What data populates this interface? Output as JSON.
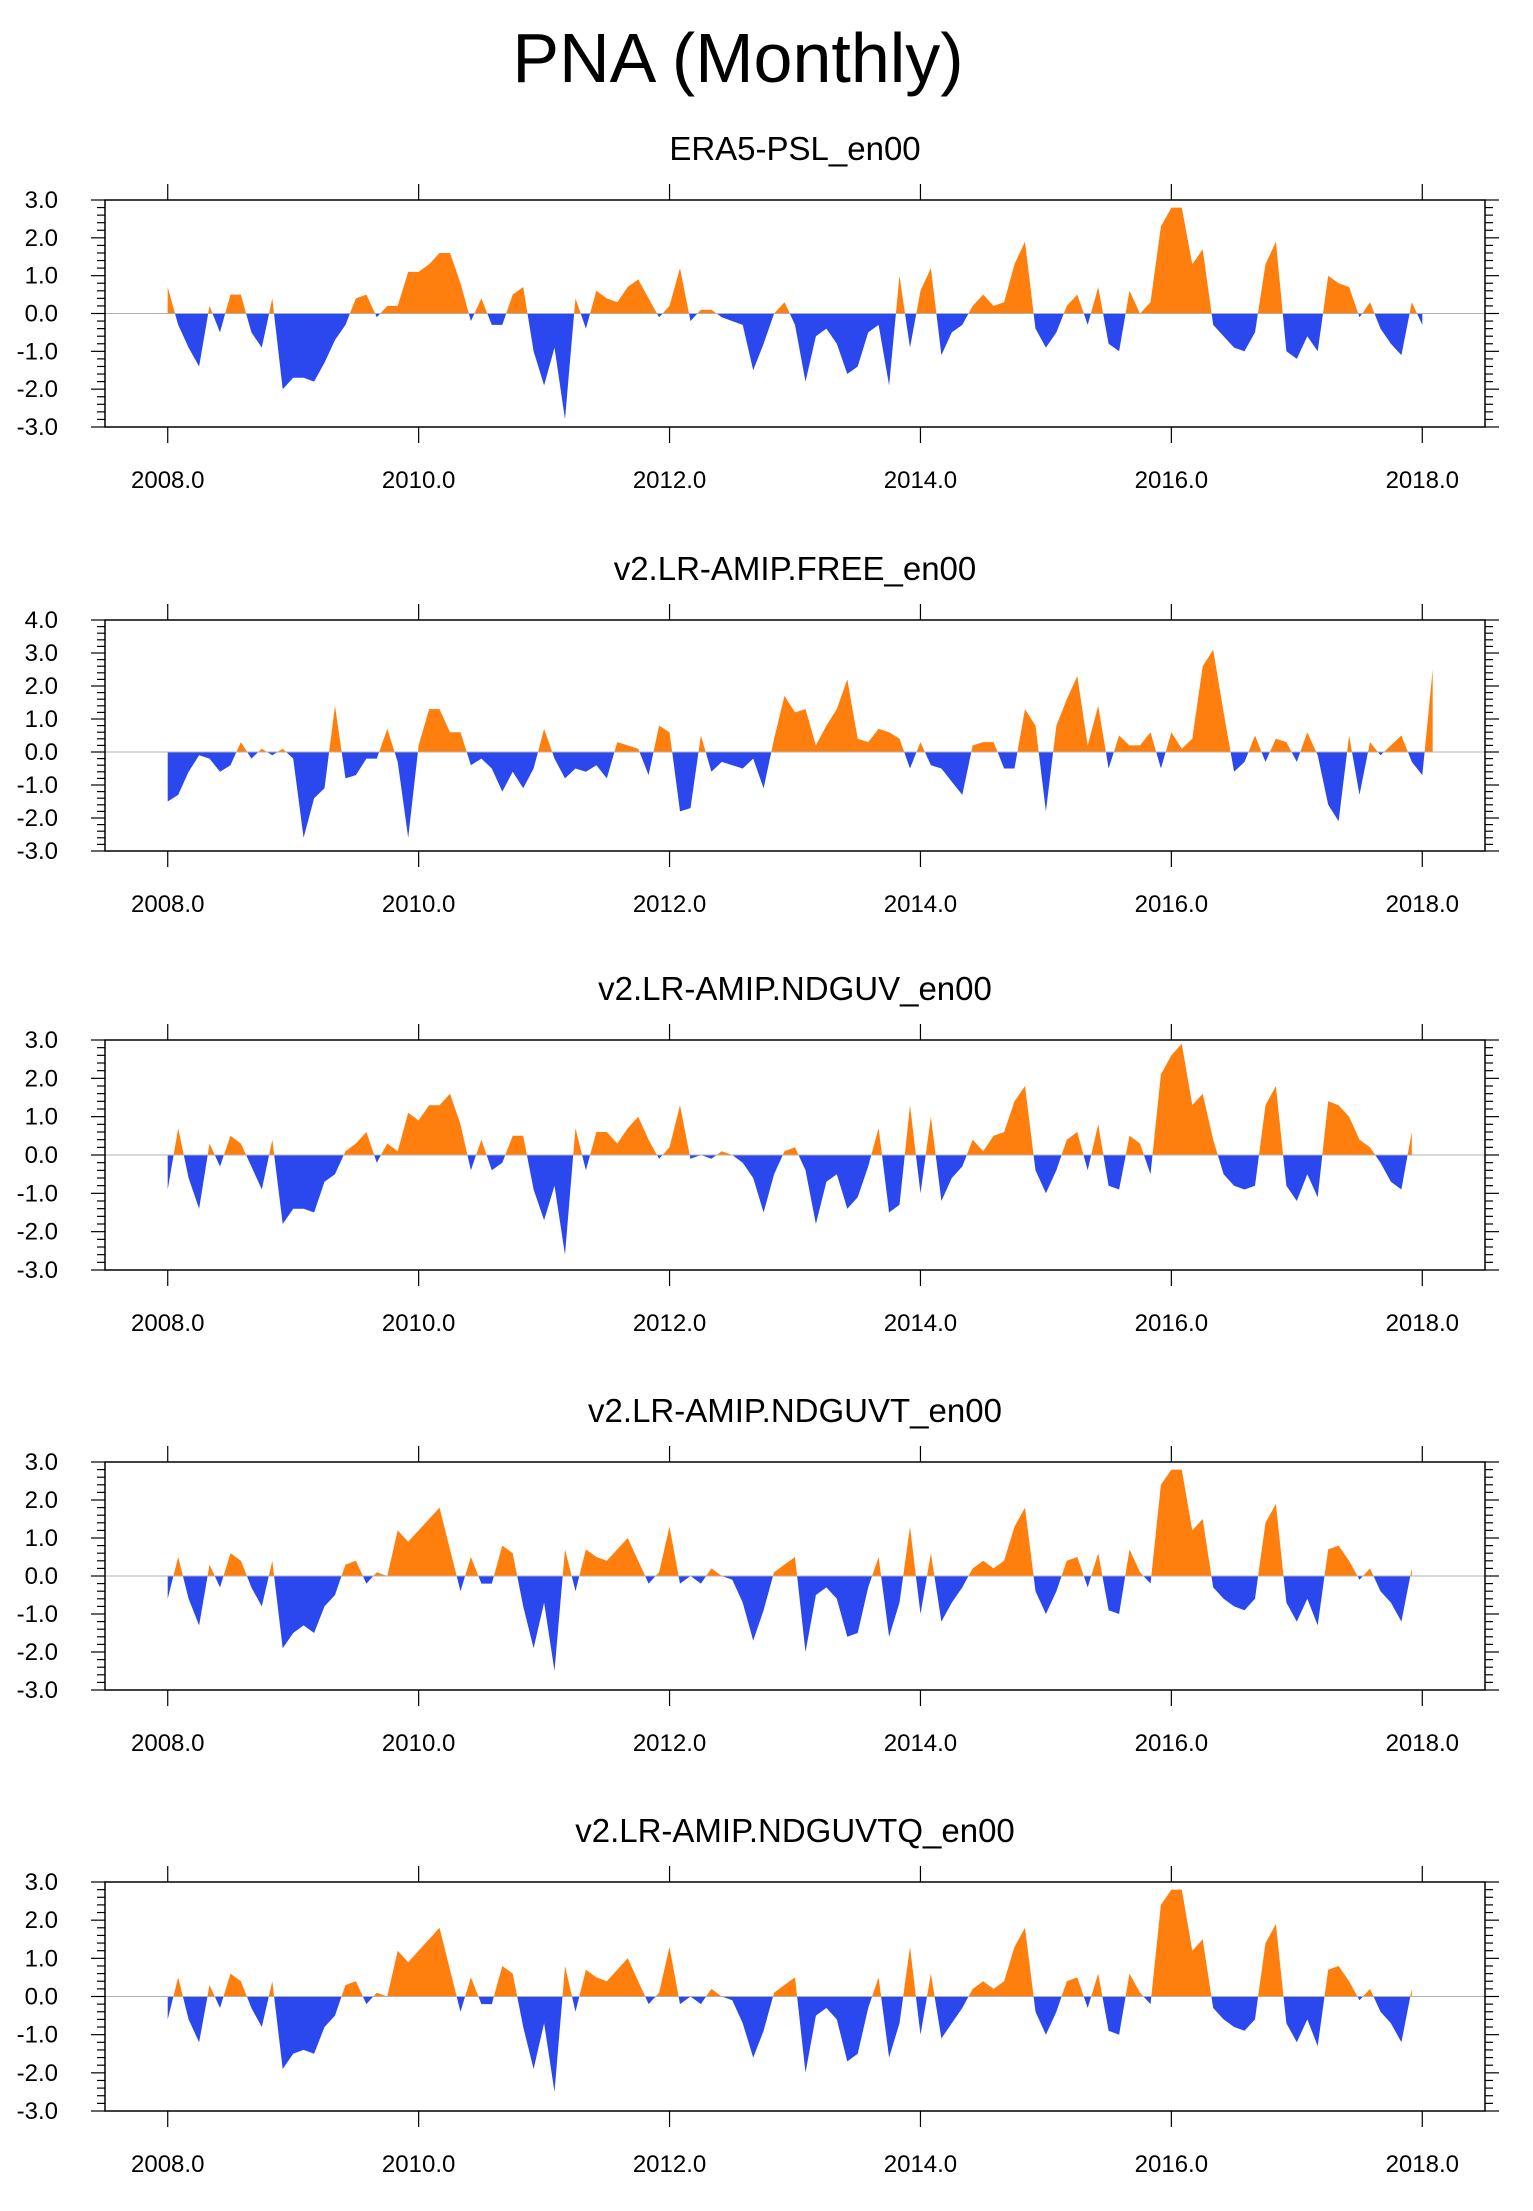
{
  "figure_title": "PNA (Monthly)",
  "colors": {
    "positive": "#ff7f0e",
    "negative": "#2b47ee",
    "axis": "#000000",
    "zero_line": "#b0b0b0"
  },
  "chart_data": [
    {
      "type": "area",
      "title": "ERA5-PSL_en00",
      "xlabel": "",
      "ylabel": "",
      "xlim": [
        2007.5,
        2018.5
      ],
      "ylim": [
        -3,
        3
      ],
      "xticks": [
        2008,
        2010,
        2012,
        2014,
        2016,
        2018
      ],
      "xtick_labels": [
        "2008.0",
        "2010.0",
        "2012.0",
        "2014.0",
        "2016.0",
        "2018.0"
      ],
      "yticks": [
        3,
        2,
        1,
        0,
        -1,
        -2,
        -3
      ],
      "ytick_labels": [
        "3.0",
        "2.0",
        "1.0",
        "0.0",
        "-1.0",
        "-2.0",
        "-3.0"
      ],
      "x_start": 2008.0,
      "x_step": 0.0833333,
      "values": [
        0.7,
        -0.3,
        -0.9,
        -1.4,
        0.2,
        -0.5,
        0.5,
        0.5,
        -0.5,
        -0.9,
        0.4,
        -2.0,
        -1.7,
        -1.7,
        -1.8,
        -1.3,
        -0.7,
        -0.3,
        0.4,
        0.5,
        -0.1,
        0.2,
        0.2,
        1.1,
        1.1,
        1.3,
        1.6,
        1.6,
        0.8,
        -0.2,
        0.4,
        -0.3,
        -0.3,
        0.5,
        0.7,
        -1.0,
        -1.9,
        -0.9,
        -2.8,
        0.4,
        -0.4,
        0.6,
        0.4,
        0.3,
        0.7,
        0.9,
        0.4,
        -0.1,
        0.2,
        1.2,
        -0.2,
        0.1,
        0.1,
        -0.1,
        -0.2,
        -0.3,
        -1.5,
        -0.8,
        0.0,
        0.3,
        -0.3,
        -1.8,
        -0.6,
        -0.4,
        -0.8,
        -1.6,
        -1.4,
        -0.5,
        -0.3,
        -1.9,
        1.0,
        -0.9,
        0.6,
        1.2,
        -1.1,
        -0.5,
        -0.3,
        0.2,
        0.5,
        0.2,
        0.3,
        1.3,
        1.9,
        -0.4,
        -0.9,
        -0.5,
        0.2,
        0.5,
        -0.3,
        0.7,
        -0.8,
        -1.0,
        0.6,
        0.0,
        0.3,
        2.3,
        2.8,
        2.8,
        1.3,
        1.7,
        -0.3,
        -0.6,
        -0.9,
        -1.0,
        -0.5,
        1.3,
        1.9,
        -1.0,
        -1.2,
        -0.6,
        -1.0,
        1.0,
        0.8,
        0.7,
        -0.1,
        0.3,
        -0.4,
        -0.8,
        -1.1,
        0.3,
        -0.3
      ]
    },
    {
      "type": "area",
      "title": "v2.LR-AMIP.FREE_en00",
      "xlabel": "",
      "ylabel": "",
      "xlim": [
        2007.5,
        2018.5
      ],
      "ylim": [
        -3,
        4
      ],
      "xticks": [
        2008,
        2010,
        2012,
        2014,
        2016,
        2018
      ],
      "xtick_labels": [
        "2008.0",
        "2010.0",
        "2012.0",
        "2014.0",
        "2016.0",
        "2018.0"
      ],
      "yticks": [
        4,
        3,
        2,
        1,
        0,
        -1,
        -2,
        -3
      ],
      "ytick_labels": [
        "4.0",
        "3.0",
        "2.0",
        "1.0",
        "0.0",
        "-1.0",
        "-2.0",
        "-3.0"
      ],
      "x_start": 2008.0,
      "x_step": 0.0833333,
      "values": [
        -1.5,
        -1.3,
        -0.6,
        -0.1,
        -0.2,
        -0.6,
        -0.4,
        0.3,
        -0.2,
        0.1,
        -0.1,
        0.1,
        -0.2,
        -2.6,
        -1.4,
        -1.1,
        1.4,
        -0.8,
        -0.7,
        -0.2,
        -0.2,
        0.7,
        -0.3,
        -2.6,
        0.2,
        1.3,
        1.3,
        0.6,
        0.6,
        -0.4,
        -0.2,
        -0.5,
        -1.2,
        -0.6,
        -1.1,
        -0.5,
        0.7,
        -0.2,
        -0.8,
        -0.5,
        -0.6,
        -0.4,
        -0.8,
        0.3,
        0.2,
        0.1,
        -0.7,
        0.8,
        0.6,
        -1.8,
        -1.7,
        0.5,
        -0.6,
        -0.3,
        -0.4,
        -0.5,
        -0.2,
        -1.1,
        0.4,
        1.7,
        1.2,
        1.3,
        0.2,
        0.8,
        1.3,
        2.2,
        0.4,
        0.3,
        0.7,
        0.6,
        0.4,
        -0.5,
        0.3,
        -0.4,
        -0.5,
        -0.9,
        -1.3,
        0.2,
        0.3,
        0.3,
        -0.5,
        -0.5,
        1.3,
        0.8,
        -1.8,
        0.8,
        1.6,
        2.3,
        0.2,
        1.4,
        -0.5,
        0.5,
        0.2,
        0.2,
        0.6,
        -0.5,
        0.6,
        0.1,
        0.4,
        2.6,
        3.1,
        1.2,
        -0.6,
        -0.3,
        0.5,
        -0.3,
        0.4,
        0.3,
        -0.3,
        0.6,
        -0.1,
        -1.6,
        -2.1,
        0.5,
        -1.3,
        0.3,
        -0.1,
        0.2,
        0.5,
        -0.3,
        -0.7,
        2.5
      ]
    },
    {
      "type": "area",
      "title": "v2.LR-AMIP.NDGUV_en00",
      "xlabel": "",
      "ylabel": "",
      "xlim": [
        2007.5,
        2018.5
      ],
      "ylim": [
        -3,
        3
      ],
      "xticks": [
        2008,
        2010,
        2012,
        2014,
        2016,
        2018
      ],
      "xtick_labels": [
        "2008.0",
        "2010.0",
        "2012.0",
        "2014.0",
        "2016.0",
        "2018.0"
      ],
      "yticks": [
        3,
        2,
        1,
        0,
        -1,
        -2,
        -3
      ],
      "ytick_labels": [
        "3.0",
        "2.0",
        "1.0",
        "0.0",
        "-1.0",
        "-2.0",
        "-3.0"
      ],
      "x_start": 2008.0,
      "x_step": 0.0833333,
      "values": [
        -0.9,
        0.7,
        -0.6,
        -1.4,
        0.3,
        -0.3,
        0.5,
        0.3,
        -0.3,
        -0.9,
        0.4,
        -1.8,
        -1.4,
        -1.4,
        -1.5,
        -0.7,
        -0.5,
        0.1,
        0.3,
        0.6,
        -0.2,
        0.3,
        0.1,
        1.1,
        0.9,
        1.3,
        1.3,
        1.6,
        0.8,
        -0.4,
        0.4,
        -0.4,
        -0.2,
        0.5,
        0.5,
        -0.9,
        -1.7,
        -0.8,
        -2.6,
        0.7,
        -0.4,
        0.6,
        0.6,
        0.3,
        0.7,
        1.0,
        0.4,
        -0.1,
        0.2,
        1.3,
        -0.1,
        0.0,
        -0.1,
        0.1,
        0.0,
        -0.2,
        -0.6,
        -1.5,
        -0.5,
        0.1,
        0.2,
        -0.4,
        -1.8,
        -0.7,
        -0.5,
        -1.4,
        -1.1,
        -0.3,
        0.7,
        -1.5,
        -1.3,
        1.3,
        -1.0,
        1.0,
        -1.2,
        -0.6,
        -0.3,
        0.4,
        0.1,
        0.5,
        0.6,
        1.4,
        1.8,
        -0.4,
        -1.0,
        -0.4,
        0.4,
        0.6,
        -0.4,
        0.8,
        -0.8,
        -0.9,
        0.5,
        0.3,
        -0.5,
        2.1,
        2.6,
        2.9,
        1.3,
        1.6,
        0.4,
        -0.5,
        -0.8,
        -0.9,
        -0.8,
        1.3,
        1.8,
        -0.8,
        -1.2,
        -0.5,
        -1.1,
        1.4,
        1.3,
        1.0,
        0.4,
        0.2,
        -0.2,
        -0.7,
        -0.9,
        0.6
      ]
    },
    {
      "type": "area",
      "title": "v2.LR-AMIP.NDGUVT_en00",
      "xlabel": "",
      "ylabel": "",
      "xlim": [
        2007.5,
        2018.5
      ],
      "ylim": [
        -3,
        3
      ],
      "xticks": [
        2008,
        2010,
        2012,
        2014,
        2016,
        2018
      ],
      "xtick_labels": [
        "2008.0",
        "2010.0",
        "2012.0",
        "2014.0",
        "2016.0",
        "2018.0"
      ],
      "yticks": [
        3,
        2,
        1,
        0,
        -1,
        -2,
        -3
      ],
      "ytick_labels": [
        "3.0",
        "2.0",
        "1.0",
        "0.0",
        "-1.0",
        "-2.0",
        "-3.0"
      ],
      "x_start": 2008.0,
      "x_step": 0.0833333,
      "values": [
        -0.6,
        0.5,
        -0.6,
        -1.3,
        0.3,
        -0.3,
        0.6,
        0.4,
        -0.3,
        -0.8,
        0.4,
        -1.9,
        -1.5,
        -1.3,
        -1.5,
        -0.8,
        -0.5,
        0.3,
        0.4,
        -0.2,
        0.1,
        0.0,
        1.2,
        0.9,
        1.2,
        1.5,
        1.8,
        0.7,
        -0.4,
        0.5,
        -0.2,
        -0.2,
        0.8,
        0.6,
        -0.8,
        -1.9,
        -0.7,
        -2.5,
        0.7,
        -0.4,
        0.7,
        0.5,
        0.4,
        0.7,
        1.0,
        0.4,
        -0.2,
        0.1,
        1.3,
        -0.2,
        0.0,
        -0.2,
        0.2,
        0.0,
        -0.1,
        -0.7,
        -1.7,
        -0.9,
        0.1,
        0.3,
        0.5,
        -2.0,
        -0.5,
        -0.3,
        -0.6,
        -1.6,
        -1.5,
        -0.3,
        0.5,
        -1.6,
        -0.7,
        1.3,
        -1.0,
        0.6,
        -1.2,
        -0.7,
        -0.3,
        0.2,
        0.4,
        0.2,
        0.4,
        1.3,
        1.8,
        -0.4,
        -1.0,
        -0.4,
        0.4,
        0.5,
        -0.3,
        0.6,
        -0.9,
        -1.0,
        0.7,
        0.1,
        -0.2,
        2.4,
        2.8,
        2.8,
        1.2,
        1.5,
        -0.3,
        -0.6,
        -0.8,
        -0.9,
        -0.6,
        1.4,
        1.9,
        -0.7,
        -1.2,
        -0.6,
        -1.3,
        0.7,
        0.8,
        0.4,
        -0.1,
        0.2,
        -0.4,
        -0.7,
        -1.2,
        0.2
      ]
    },
    {
      "type": "area",
      "title": "v2.LR-AMIP.NDGUVTQ_en00",
      "xlabel": "",
      "ylabel": "",
      "xlim": [
        2007.5,
        2018.5
      ],
      "ylim": [
        -3,
        3
      ],
      "xticks": [
        2008,
        2010,
        2012,
        2014,
        2016,
        2018
      ],
      "xtick_labels": [
        "2008.0",
        "2010.0",
        "2012.0",
        "2014.0",
        "2016.0",
        "2018.0"
      ],
      "yticks": [
        3,
        2,
        1,
        0,
        -1,
        -2,
        -3
      ],
      "ytick_labels": [
        "3.0",
        "2.0",
        "1.0",
        "0.0",
        "-1.0",
        "-2.0",
        "-3.0"
      ],
      "x_start": 2008.0,
      "x_step": 0.0833333,
      "values": [
        -0.6,
        0.5,
        -0.6,
        -1.2,
        0.3,
        -0.3,
        0.6,
        0.4,
        -0.3,
        -0.8,
        0.4,
        -1.9,
        -1.5,
        -1.4,
        -1.5,
        -0.8,
        -0.5,
        0.3,
        0.4,
        -0.2,
        0.1,
        0.0,
        1.2,
        0.9,
        1.2,
        1.5,
        1.8,
        0.7,
        -0.4,
        0.5,
        -0.2,
        -0.2,
        0.8,
        0.6,
        -0.8,
        -1.9,
        -0.7,
        -2.5,
        0.8,
        -0.4,
        0.7,
        0.5,
        0.4,
        0.7,
        1.0,
        0.4,
        -0.2,
        0.1,
        1.3,
        -0.2,
        0.0,
        -0.2,
        0.2,
        0.0,
        -0.1,
        -0.7,
        -1.6,
        -0.9,
        0.1,
        0.3,
        0.5,
        -2.0,
        -0.5,
        -0.3,
        -0.6,
        -1.7,
        -1.5,
        -0.3,
        0.5,
        -1.6,
        -0.7,
        1.3,
        -1.0,
        0.6,
        -1.1,
        -0.7,
        -0.3,
        0.2,
        0.4,
        0.2,
        0.4,
        1.3,
        1.8,
        -0.4,
        -1.0,
        -0.4,
        0.4,
        0.5,
        -0.3,
        0.6,
        -0.9,
        -1.0,
        0.6,
        0.1,
        -0.2,
        2.4,
        2.8,
        2.8,
        1.2,
        1.5,
        -0.3,
        -0.6,
        -0.8,
        -0.9,
        -0.6,
        1.4,
        1.9,
        -0.7,
        -1.2,
        -0.6,
        -1.3,
        0.7,
        0.8,
        0.4,
        -0.1,
        0.2,
        -0.4,
        -0.7,
        -1.2,
        0.2
      ]
    }
  ]
}
